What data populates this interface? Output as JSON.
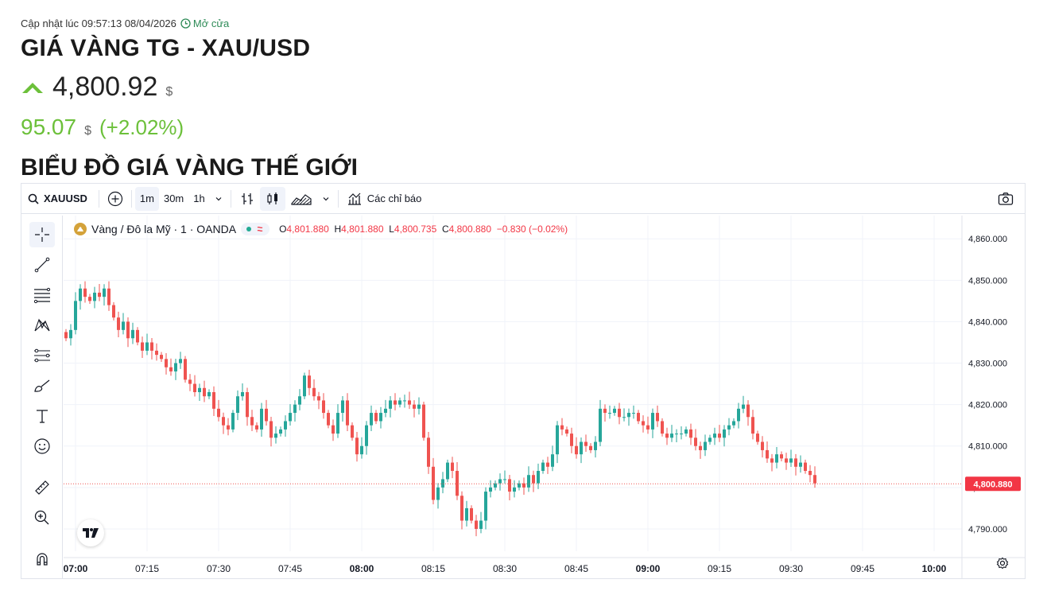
{
  "header": {
    "updated_label": "Cập nhật lúc 09:57:13 08/04/2026",
    "market_status": "Mở cửa",
    "title": "GIÁ VÀNG TG - XAU/USD",
    "price": "4,800.92",
    "price_unit": "$",
    "change": "95.07",
    "change_unit": "$",
    "change_pct": "(+2.02%)",
    "section_title": "BIỂU ĐỒ GIÁ VÀNG THẾ GIỚI"
  },
  "colors": {
    "up": "#26a69a",
    "down": "#ef5350",
    "positive_text": "#6cc03a",
    "status": "#2e8b57"
  },
  "toolbar": {
    "symbol": "XAUUSD",
    "intervals": [
      "1m",
      "30m",
      "1h"
    ],
    "active_interval": "1m",
    "indicators_label": "Các chỉ báo"
  },
  "legend": {
    "name": "Vàng / Đô la Mỹ · 1 · OANDA",
    "o_label": "O",
    "o_value": "4,801.880",
    "h_label": "H",
    "h_value": "4,801.880",
    "l_label": "L",
    "l_value": "4,800.735",
    "c_label": "C",
    "c_value": "4,800.880",
    "change": "−0.830 (−0.02%)"
  },
  "left_tools": [
    "crosshair-icon",
    "trend-line-icon",
    "fib-lines-icon",
    "pattern-icon",
    "prediction-icon",
    "brush-icon",
    "text-icon",
    "emoji-icon",
    "ruler-icon",
    "zoom-icon",
    "magnet-icon"
  ],
  "chart_data": {
    "type": "candlestick",
    "x_ticks": [
      "07:00",
      "07:15",
      "07:30",
      "07:45",
      "08:00",
      "08:15",
      "08:30",
      "08:45",
      "09:00",
      "09:15",
      "09:30",
      "09:45",
      "10:00"
    ],
    "bold_x_ticks": [
      "07:00",
      "08:00",
      "09:00",
      "10:00"
    ],
    "y_ticks": [
      "4,860.000",
      "4,850.000",
      "4,840.000",
      "4,830.000",
      "4,820.000",
      "4,810.000",
      "4,800.000",
      "4,790.000"
    ],
    "ylim": [
      4785,
      4861
    ],
    "last_price": 4800.88,
    "last_price_label": "4,800.880",
    "grid": true,
    "closes": [
      4836,
      4838,
      4845,
      4848,
      4846,
      4845,
      4847,
      4846,
      4848,
      4844,
      4841,
      4838,
      4840,
      4836,
      4838,
      4835,
      4833,
      4835,
      4833,
      4832,
      4831,
      4829,
      4828,
      4830,
      4831,
      4826,
      4825,
      4823,
      4824,
      4822,
      4823,
      4819,
      4817,
      4815,
      4814,
      4818,
      4822,
      4823,
      4817,
      4815,
      4814,
      4819,
      4816,
      4812,
      4813,
      4814,
      4816,
      4818,
      4820,
      4822,
      4827,
      4824,
      4822,
      4821,
      4818,
      4815,
      4813,
      4818,
      4821,
      4815,
      4812,
      4808,
      4810,
      4815,
      4818,
      4816,
      4818,
      4819,
      4821,
      4820,
      4821,
      4821,
      4820,
      4819,
      4820,
      4812,
      4805,
      4797,
      4800,
      4802,
      4806,
      4804,
      4798,
      4792,
      4795,
      4792,
      4790,
      4792,
      4799,
      4800,
      4801,
      4802,
      4802,
      4799,
      4800,
      4801,
      4800,
      4803,
      4801,
      4804,
      4806,
      4805,
      4808,
      4815,
      4814,
      4813,
      4810,
      4808,
      4811,
      4810,
      4809,
      4811,
      4819,
      4818,
      4818,
      4819,
      4817,
      4817,
      4818,
      4818,
      4816,
      4815,
      4814,
      4818,
      4816,
      4813,
      4812,
      4813,
      4813,
      4813,
      4814,
      4812,
      4810,
      4809,
      4811,
      4812,
      4813,
      4812,
      4814,
      4815,
      4816,
      4819,
      4820,
      4817,
      4813,
      4811,
      4809,
      4807,
      4806,
      4808,
      4807,
      4806,
      4807,
      4805,
      4806,
      4804,
      4803,
      4801
    ]
  }
}
